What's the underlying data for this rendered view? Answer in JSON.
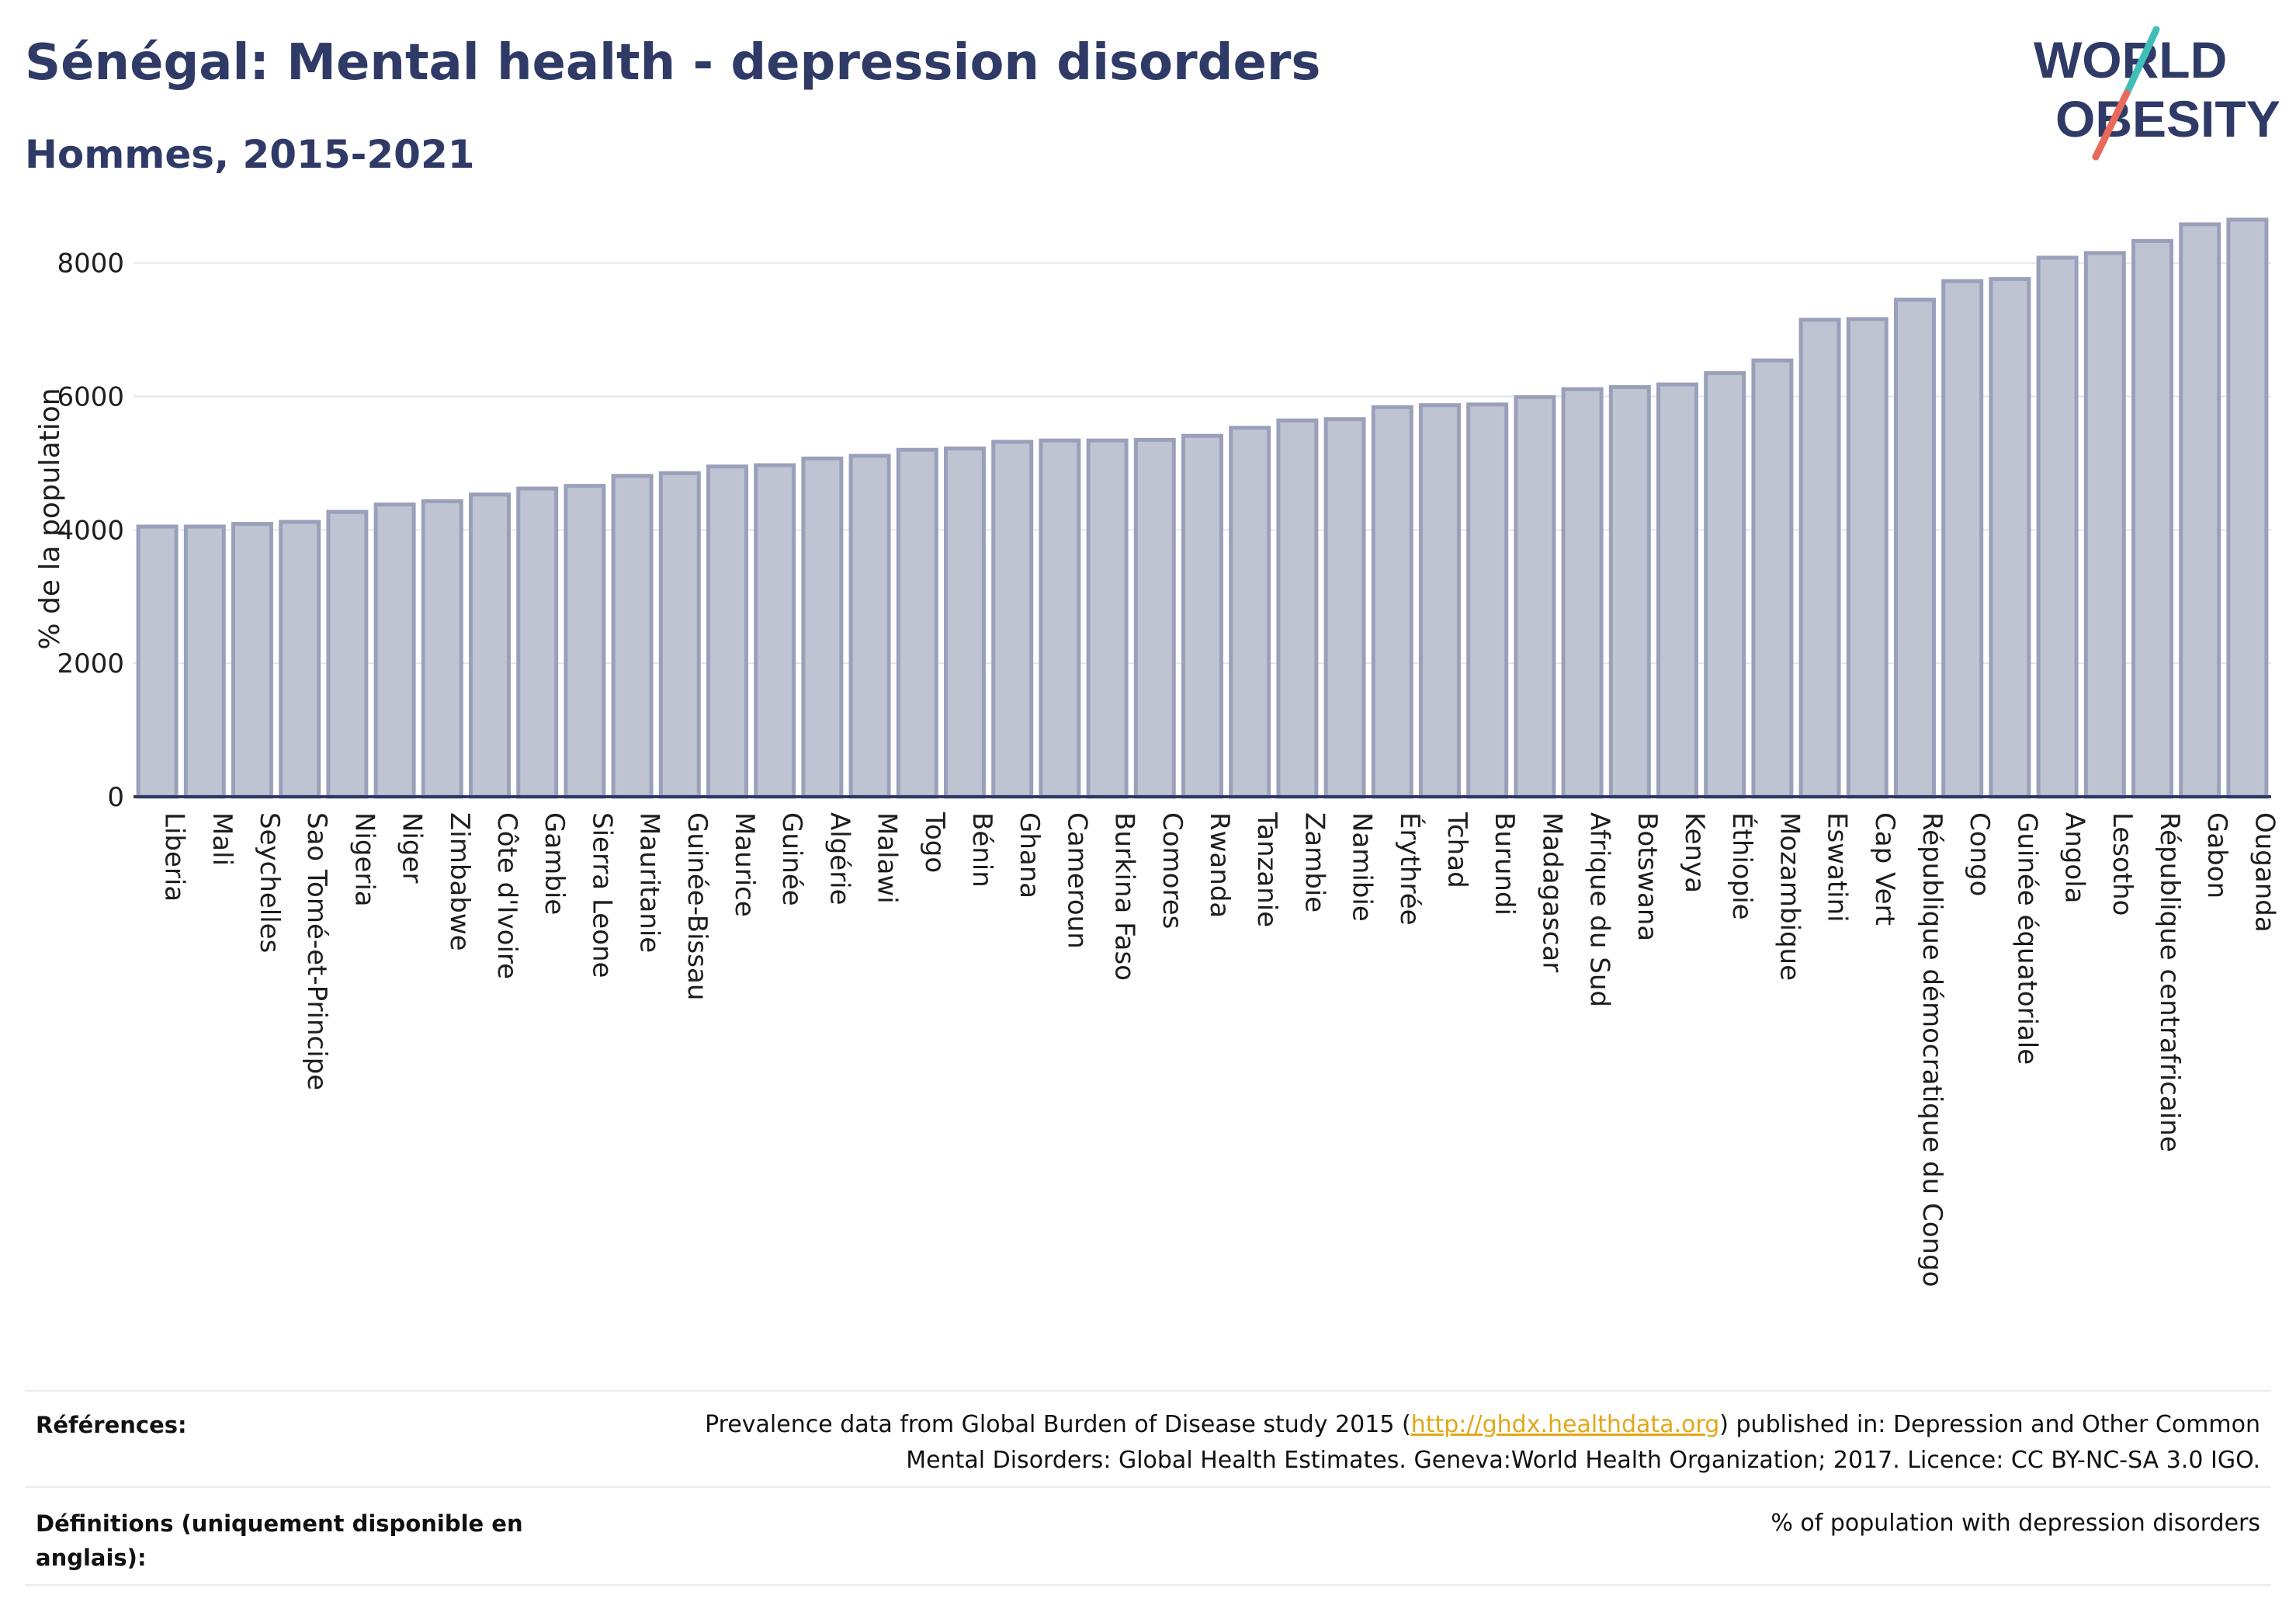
{
  "title": "Sénégal: Mental health - depression disorders",
  "subtitle": "Hommes, 2015-2021",
  "logo": {
    "line1": "WORLD",
    "line2": "OBESITY"
  },
  "colors": {
    "title": "#2f3a67",
    "bar_fill": "#bfc4d3",
    "bar_stroke": "#9aa0b9",
    "axis": "#2f3a67",
    "link": "#e2a81a"
  },
  "chart_data": {
    "type": "bar",
    "ylabel": "% de la population",
    "xlabel": "",
    "ylim": [
      0,
      8800
    ],
    "yticks": [
      0,
      2000,
      4000,
      6000,
      8000
    ],
    "grid": true,
    "categories": [
      "Liberia",
      "Mali",
      "Seychelles",
      "Sao Tomé-et-Principe",
      "Nigeria",
      "Niger",
      "Zimbabwe",
      "Côte d'Ivoire",
      "Gambie",
      "Sierra Leone",
      "Mauritanie",
      "Guinée-Bissau",
      "Maurice",
      "Guinée",
      "Algérie",
      "Malawi",
      "Togo",
      "Bénin",
      "Ghana",
      "Cameroun",
      "Burkina Faso",
      "Comores",
      "Rwanda",
      "Tanzanie",
      "Zambie",
      "Namibie",
      "Érythrée",
      "Tchad",
      "Burundi",
      "Madagascar",
      "Afrique du Sud",
      "Botswana",
      "Kenya",
      "Éthiopie",
      "Mozambique",
      "Eswatini",
      "Cap Vert",
      "République démocratique du Congo",
      "Congo",
      "Guinée équatoriale",
      "Angola",
      "Lesotho",
      "République centrafricaine",
      "Gabon",
      "Ouganda"
    ],
    "values": [
      4050,
      4050,
      4090,
      4120,
      4270,
      4380,
      4430,
      4530,
      4620,
      4660,
      4810,
      4850,
      4950,
      4970,
      5070,
      5110,
      5200,
      5220,
      5320,
      5340,
      5340,
      5350,
      5410,
      5530,
      5640,
      5660,
      5840,
      5870,
      5880,
      5990,
      6110,
      6140,
      6180,
      6350,
      6540,
      7150,
      7160,
      7450,
      7730,
      7760,
      8080,
      8150,
      8330,
      8580,
      8650
    ]
  },
  "footer": {
    "references_label": "Références:",
    "references_pre": "Prevalence data from Global Burden of Disease study 2015 (",
    "references_link": "http://ghdx.healthdata.org",
    "references_post": ") published in: Depression and Other Common Mental Disorders: Global Health Estimates. Geneva:World Health Organization; 2017. Licence: CC BY-NC-SA 3.0 IGO.",
    "definitions_label": "Définitions (uniquement disponible en anglais):",
    "definitions_text": "% of population with depression disorders"
  }
}
